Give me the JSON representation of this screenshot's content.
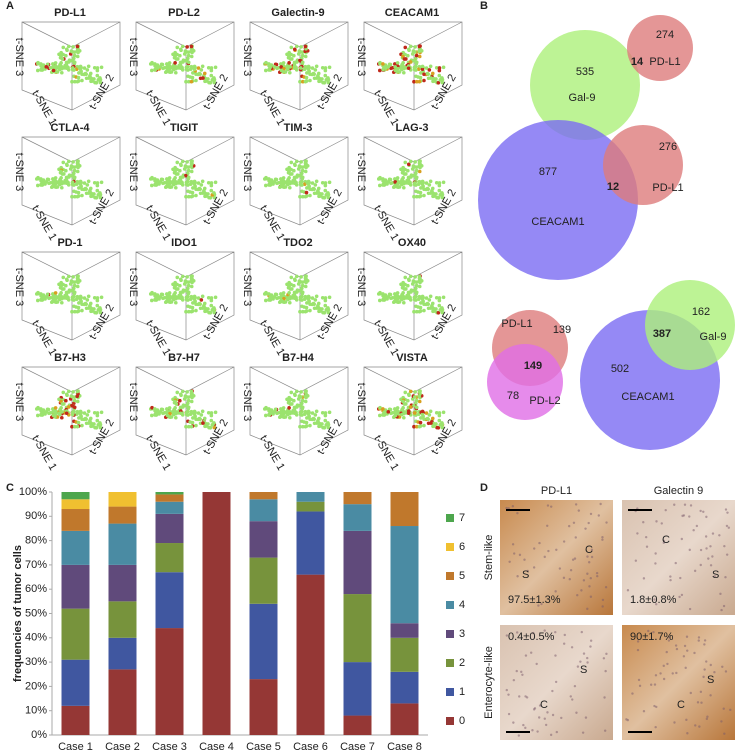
{
  "panel_labels": [
    "A",
    "B",
    "C",
    "D"
  ],
  "panel_a": {
    "markers": [
      "PD-L1",
      "PD-L2",
      "Galectin-9",
      "CEACAM1",
      "CTLA-4",
      "TIGIT",
      "TIM-3",
      "LAG-3",
      "PD-1",
      "IDO1",
      "TDO2",
      "OX40",
      "B7-H3",
      "B7-H7",
      "B7-H4",
      "VISTA"
    ],
    "axis_labels": [
      "t-SNE 1",
      "t-SNE 2",
      "t-SNE 3"
    ]
  },
  "panel_b": {
    "venns": [
      {
        "sets": [
          {
            "label": "Gal-9",
            "count": 535
          },
          {
            "label": "PD-L1",
            "count": 274
          }
        ],
        "overlap": 14
      },
      {
        "sets": [
          {
            "label": "CEACAM1",
            "count": 877
          },
          {
            "label": "PD-L1",
            "count": 276
          }
        ],
        "overlap": 12
      },
      {
        "sets": [
          {
            "label": "PD-L1",
            "count": 139
          },
          {
            "label": "PD-L2",
            "count": 78
          }
        ],
        "overlap": 149
      },
      {
        "sets": [
          {
            "label": "CEACAM1",
            "count": 502
          },
          {
            "label": "Gal-9",
            "count": 162
          }
        ],
        "overlap": 387
      }
    ]
  },
  "chart_data": {
    "type": "stacked_bar",
    "y_label": "frequencies of tumor cells",
    "categories": [
      "Case 1",
      "Case 2",
      "Case 3",
      "Case 4",
      "Case 5",
      "Case 6",
      "Case 7",
      "Case 8"
    ],
    "series": [
      {
        "name": "0",
        "color": "#953735",
        "values": [
          12,
          27,
          44,
          100,
          23,
          66,
          8,
          13
        ]
      },
      {
        "name": "1",
        "color": "#4057a0",
        "values": [
          19,
          13,
          23,
          0,
          31,
          26,
          22,
          13
        ]
      },
      {
        "name": "2",
        "color": "#77933c",
        "values": [
          21,
          15,
          12,
          0,
          19,
          4,
          28,
          14
        ]
      },
      {
        "name": "3",
        "color": "#604a7b",
        "values": [
          18,
          15,
          12,
          0,
          15,
          0,
          26,
          6
        ]
      },
      {
        "name": "4",
        "color": "#4a8ba3",
        "values": [
          14,
          17,
          5,
          0,
          9,
          4,
          11,
          40
        ]
      },
      {
        "name": "5",
        "color": "#c0782c",
        "values": [
          9,
          7,
          3,
          0,
          3,
          0,
          5,
          14
        ]
      },
      {
        "name": "6",
        "color": "#f0c030",
        "values": [
          4,
          6,
          0,
          0,
          0,
          0,
          0,
          0
        ]
      },
      {
        "name": "7",
        "color": "#4da64d",
        "values": [
          3,
          0,
          1,
          0,
          0,
          0,
          0,
          0
        ]
      }
    ],
    "ylim": [
      0,
      100
    ],
    "yticks": [
      {
        "value": 0,
        "label": "0%"
      },
      {
        "value": 10,
        "label": "10%"
      },
      {
        "value": 20,
        "label": "20%"
      },
      {
        "value": 30,
        "label": "30%"
      },
      {
        "value": 40,
        "label": "40%"
      },
      {
        "value": 50,
        "label": "50%"
      },
      {
        "value": 60,
        "label": "60%"
      },
      {
        "value": 70,
        "label": "70%"
      },
      {
        "value": 80,
        "label": "80%"
      },
      {
        "value": 90,
        "label": "90%"
      },
      {
        "value": 100,
        "label": "100%"
      }
    ],
    "legend": "right",
    "grid": false
  },
  "panel_d": {
    "columns": [
      "PD-L1",
      "Galectin 9"
    ],
    "rows": [
      "Stem-like",
      "Enterocyte-like"
    ],
    "images": [
      [
        {
          "value": "97.5±1.3%",
          "regions": [
            "S",
            "C"
          ]
        },
        {
          "value": "1.8±0.8%",
          "regions": [
            "C",
            "S"
          ]
        }
      ],
      [
        {
          "value": "0.4±0.5%",
          "regions": [
            "S",
            "C"
          ]
        },
        {
          "value": "90±1.7%",
          "regions": [
            "S",
            "C"
          ]
        }
      ]
    ]
  }
}
